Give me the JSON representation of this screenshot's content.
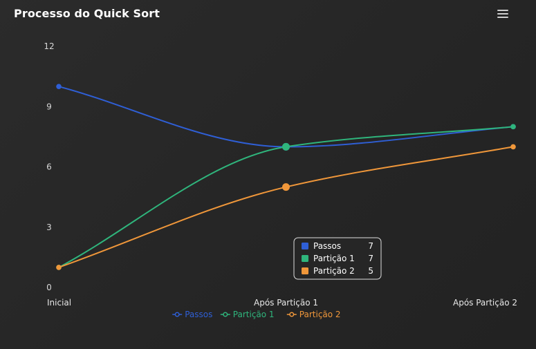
{
  "header": {
    "title": "Processo do Quick Sort",
    "menu_icon": "hamburger-menu-icon"
  },
  "colors": {
    "passos": "#2f5fd6",
    "particao1": "#2fb57c",
    "particao2": "#f0973a",
    "background": "#282828"
  },
  "chart_data": {
    "type": "line",
    "title": "Processo do Quick Sort",
    "categories": [
      "Inicial",
      "Após Partição 1",
      "Após Partição 2"
    ],
    "series": [
      {
        "name": "Passos",
        "values": [
          10,
          7,
          8
        ]
      },
      {
        "name": "Partição 1",
        "values": [
          1,
          7,
          8
        ]
      },
      {
        "name": "Partição 2",
        "values": [
          1,
          5,
          7
        ]
      }
    ],
    "ylim": [
      0,
      12
    ],
    "yticks": [
      0,
      3,
      6,
      9,
      12
    ],
    "grid": false,
    "legend": "bottom-center",
    "tooltip": {
      "category_index": 1,
      "items": [
        {
          "name": "Passos",
          "value": "7"
        },
        {
          "name": "Partição 1",
          "value": "7"
        },
        {
          "name": "Partição 2",
          "value": "5"
        }
      ]
    }
  }
}
